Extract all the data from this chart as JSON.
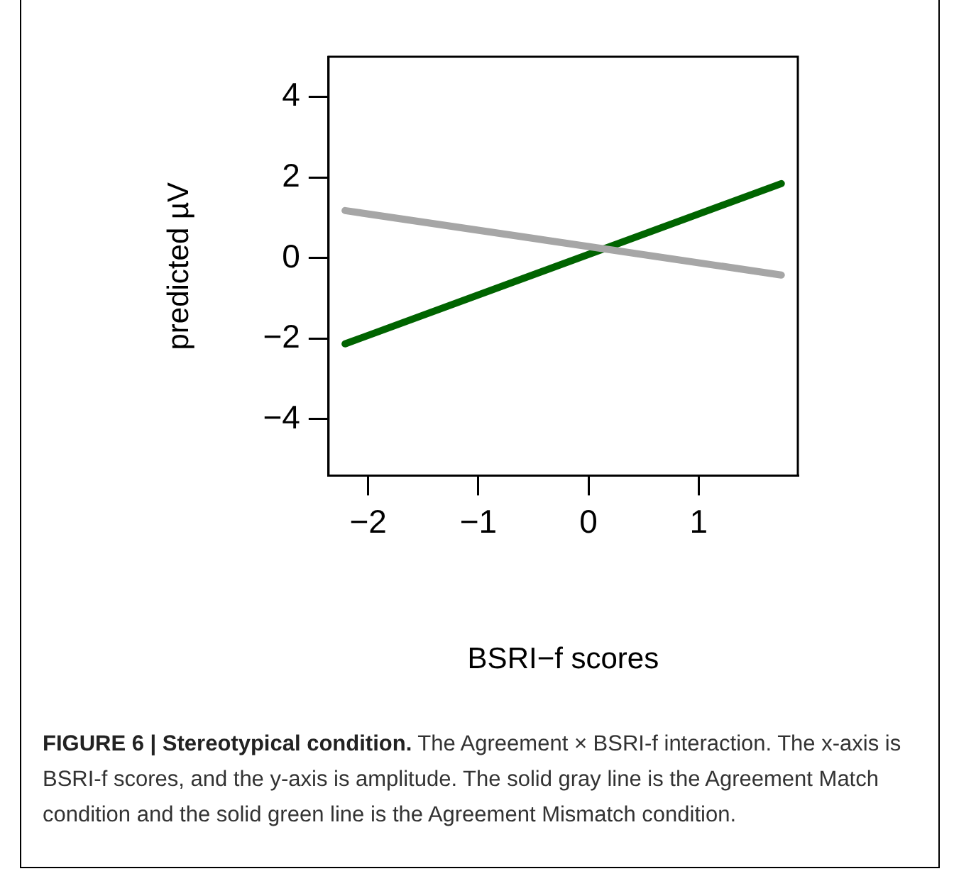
{
  "chart_data": {
    "type": "line",
    "xlabel": "BSRI−f scores",
    "ylabel": "predicted µV",
    "series": [
      {
        "color": "#a6a6a6",
        "values": [
          1.18,
          -0.42
        ]
      },
      {
        "color": "#006400",
        "values": [
          -2.13,
          1.85
        ]
      }
    ],
    "x": [
      -2.21,
      1.75
    ],
    "xlim": [
      -2.36,
      1.9
    ],
    "xticks": [
      {
        "value": -2,
        "label": "−2"
      },
      {
        "value": -1,
        "label": "−1"
      },
      0,
      1
    ],
    "ylim": [
      -5.4,
      5.0
    ],
    "yticks": [
      {
        "value": -4,
        "label": "−4"
      },
      {
        "value": -2,
        "label": "−2"
      },
      0,
      2,
      4
    ],
    "grid": false,
    "legend": false,
    "marker": "none",
    "line_style": "solid",
    "annotations": [
      "FIGURE 6 | Stereotypical condition.",
      "The Agreement × BSRI-f interaction. The x-axis is BSRI-f scores, and the y-axis is amplitude. The solid gray line is the Agreement Match condition and the solid green line is the Agreement Mismatch condition."
    ]
  }
}
